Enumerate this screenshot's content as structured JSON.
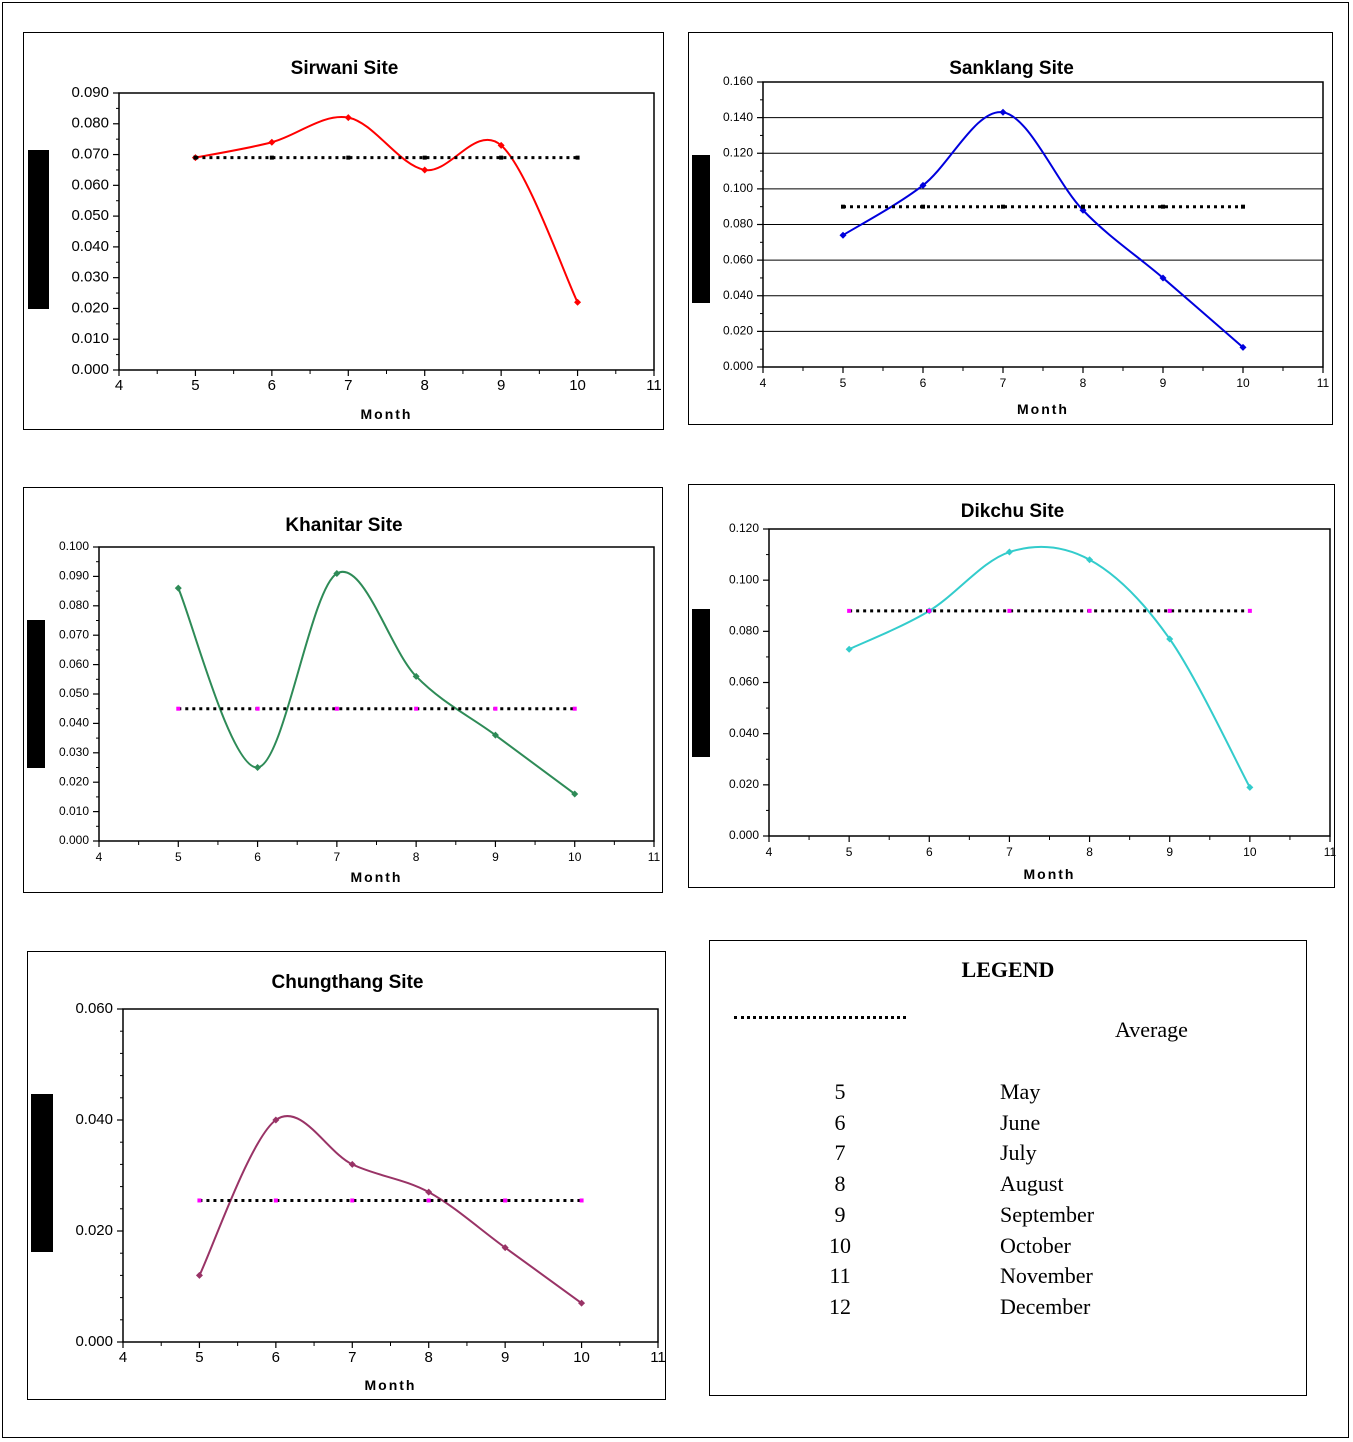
{
  "chart_data": [
    {
      "id": "sirwani",
      "type": "line",
      "title": "Sirwani Site",
      "xlabel": "Month",
      "ylabel": "",
      "xlim": [
        4,
        11
      ],
      "ylim": [
        0,
        0.09
      ],
      "x_ticks": [
        "4",
        "5",
        "6",
        "7",
        "8",
        "9",
        "10",
        "11"
      ],
      "y_ticks": [
        "0.000",
        "0.010",
        "0.020",
        "0.030",
        "0.040",
        "0.050",
        "0.060",
        "0.070",
        "0.080",
        "0.090"
      ],
      "grid": false,
      "series": [
        {
          "color": "#ff0000",
          "x": [
            5,
            6,
            7,
            8,
            9,
            10
          ],
          "values": [
            0.069,
            0.074,
            0.082,
            0.065,
            0.073,
            0.022
          ]
        },
        {
          "name": "Average",
          "style": "dotted",
          "color": "#000000",
          "x": [
            5,
            6,
            7,
            8,
            9,
            10
          ],
          "values": [
            0.069,
            0.069,
            0.069,
            0.069,
            0.069,
            0.069
          ]
        }
      ]
    },
    {
      "id": "sanklang",
      "type": "line",
      "title": "Sanklang Site",
      "xlabel": "Month",
      "ylabel": "",
      "xlim": [
        4,
        11
      ],
      "ylim": [
        0,
        0.16
      ],
      "x_ticks": [
        "4",
        "5",
        "6",
        "7",
        "8",
        "9",
        "10",
        "11"
      ],
      "y_ticks": [
        "0.000",
        "0.020",
        "0.040",
        "0.060",
        "0.080",
        "0.100",
        "0.120",
        "0.140",
        "0.160"
      ],
      "grid": true,
      "series": [
        {
          "color": "#0000dd",
          "x": [
            5,
            6,
            7,
            8,
            9,
            10
          ],
          "values": [
            0.074,
            0.102,
            0.143,
            0.088,
            0.05,
            0.011
          ]
        },
        {
          "name": "Average",
          "style": "dotted",
          "color": "#000000",
          "x": [
            5,
            6,
            7,
            8,
            9,
            10
          ],
          "values": [
            0.09,
            0.09,
            0.09,
            0.09,
            0.09,
            0.09
          ]
        }
      ]
    },
    {
      "id": "khanitar",
      "type": "line",
      "title": "Khanitar Site",
      "xlabel": "Month",
      "ylabel": "",
      "xlim": [
        4,
        11
      ],
      "ylim": [
        0,
        0.1
      ],
      "x_ticks": [
        "4",
        "5",
        "6",
        "7",
        "8",
        "9",
        "10",
        "11"
      ],
      "y_ticks": [
        "0.000",
        "0.010",
        "0.020",
        "0.030",
        "0.040",
        "0.050",
        "0.060",
        "0.070",
        "0.080",
        "0.090",
        "0.100"
      ],
      "grid": false,
      "series": [
        {
          "color": "#2e8b57",
          "x": [
            5,
            6,
            7,
            8,
            9,
            10
          ],
          "values": [
            0.086,
            0.025,
            0.091,
            0.056,
            0.036,
            0.016
          ]
        },
        {
          "name": "Average",
          "style": "dotted",
          "color": "#000000",
          "marker_color": "#ff00ff",
          "x": [
            5,
            6,
            7,
            8,
            9,
            10
          ],
          "values": [
            0.045,
            0.045,
            0.045,
            0.045,
            0.045,
            0.045
          ]
        }
      ]
    },
    {
      "id": "dikchu",
      "type": "line",
      "title": "Dikchu Site",
      "xlabel": "Month",
      "ylabel": "",
      "xlim": [
        4,
        11
      ],
      "ylim": [
        0,
        0.12
      ],
      "x_ticks": [
        "4",
        "5",
        "6",
        "7",
        "8",
        "9",
        "10",
        "11"
      ],
      "y_ticks": [
        "0.000",
        "0.020",
        "0.040",
        "0.060",
        "0.080",
        "0.100",
        "0.120"
      ],
      "grid": false,
      "series": [
        {
          "color": "#33cccc",
          "x": [
            5,
            6,
            7,
            8,
            9,
            10
          ],
          "values": [
            0.073,
            0.088,
            0.111,
            0.108,
            0.077,
            0.019
          ]
        },
        {
          "name": "Average",
          "style": "dotted",
          "color": "#000000",
          "marker_color": "#ff00ff",
          "x": [
            5,
            6,
            7,
            8,
            9,
            10
          ],
          "values": [
            0.088,
            0.088,
            0.088,
            0.088,
            0.088,
            0.088
          ]
        }
      ]
    },
    {
      "id": "chungthang",
      "type": "line",
      "title": "Chungthang Site",
      "xlabel": "Month",
      "ylabel": "",
      "xlim": [
        4,
        11
      ],
      "ylim": [
        0,
        0.06
      ],
      "x_ticks": [
        "4",
        "5",
        "6",
        "7",
        "8",
        "9",
        "10",
        "11"
      ],
      "y_ticks": [
        "0.000",
        "0.020",
        "0.040",
        "0.060"
      ],
      "grid": false,
      "series": [
        {
          "color": "#993366",
          "x": [
            5,
            6,
            7,
            8,
            9,
            10
          ],
          "values": [
            0.012,
            0.04,
            0.032,
            0.027,
            0.017,
            0.007
          ]
        },
        {
          "name": "Average",
          "style": "dotted",
          "color": "#000000",
          "marker_color": "#ff00ff",
          "x": [
            5,
            6,
            7,
            8,
            9,
            10
          ],
          "values": [
            0.0255,
            0.0255,
            0.0255,
            0.0255,
            0.0255,
            0.0255
          ]
        }
      ]
    }
  ],
  "legend": {
    "title": "LEGEND",
    "average_label": "Average",
    "months": [
      {
        "num": "5",
        "name": "May"
      },
      {
        "num": "6",
        "name": "June"
      },
      {
        "num": "7",
        "name": "July"
      },
      {
        "num": "8",
        "name": "August"
      },
      {
        "num": "9",
        "name": "September"
      },
      {
        "num": "10",
        "name": "October"
      },
      {
        "num": "11",
        "name": "November"
      },
      {
        "num": "12",
        "name": "December"
      }
    ]
  }
}
